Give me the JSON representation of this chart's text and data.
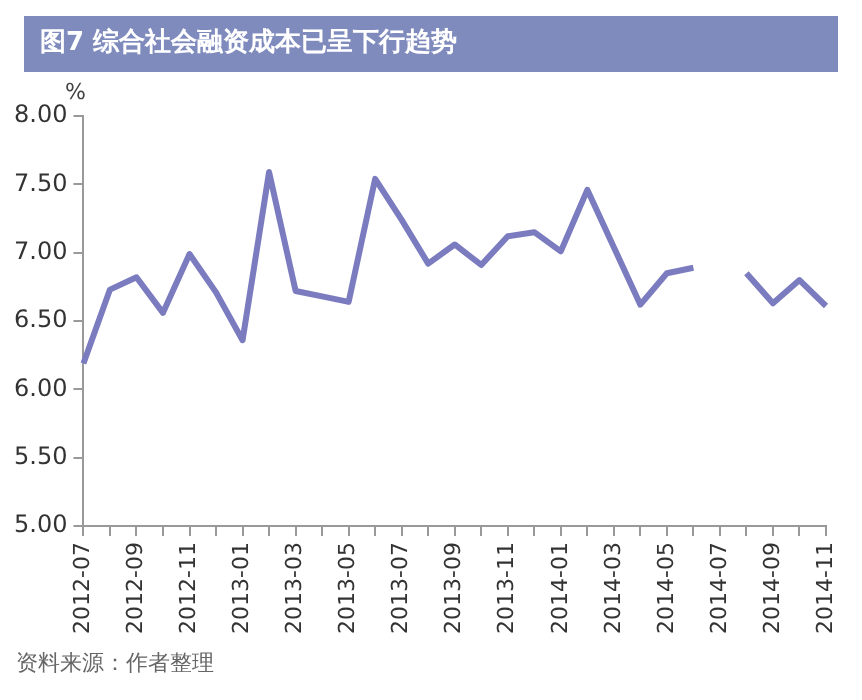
{
  "chart_data": {
    "type": "line",
    "title": "图7 综合社会融资成本已呈下行趋势",
    "ylabel": "%",
    "categories": [
      "2012-07",
      null,
      "2012-09",
      null,
      "2012-11",
      null,
      "2013-01",
      null,
      "2013-03",
      null,
      "2013-05",
      null,
      "2013-07",
      null,
      "2013-09",
      null,
      "2013-11",
      null,
      "2014-01",
      null,
      "2014-03",
      null,
      "2014-05",
      null,
      "2014-07",
      null,
      "2014-09",
      null,
      "2014-11"
    ],
    "series": [
      {
        "color": "#7b7bbf",
        "values": [
          6.19,
          6.73,
          6.82,
          6.56,
          6.99,
          6.71,
          6.36,
          7.59,
          6.72,
          6.68,
          6.64,
          7.54,
          7.24,
          6.92,
          7.06,
          6.91,
          7.12,
          7.15,
          7.01,
          7.46,
          7.04,
          6.62,
          6.85,
          6.89,
          null,
          6.85,
          6.63,
          6.8,
          6.61
        ]
      }
    ],
    "ylim": [
      5,
      8
    ],
    "yticks": [
      {
        "value": 5,
        "label": "5.00"
      },
      {
        "value": 5.5,
        "label": "5.50"
      },
      {
        "value": 6,
        "label": "6.00"
      },
      {
        "value": 6.5,
        "label": "6.50"
      },
      {
        "value": 7,
        "label": "7.00"
      },
      {
        "value": 7.5,
        "label": "7.50"
      },
      {
        "value": 8,
        "label": "8.00"
      }
    ],
    "grid": false,
    "legend": false,
    "marker": "none",
    "line_style": "solid",
    "annotations": [
      "资料来源：作者整理"
    ]
  }
}
